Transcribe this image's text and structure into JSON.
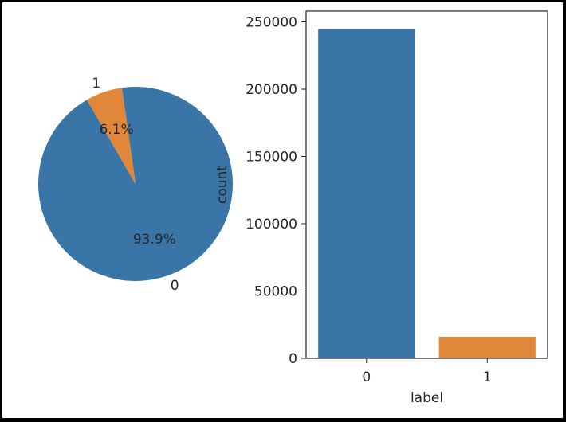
{
  "colors": {
    "series_0": "#3a75a8",
    "series_1": "#e1873a",
    "background": "#ffffff",
    "axis": "#262626"
  },
  "chart_data": [
    {
      "type": "pie",
      "categories": [
        "0",
        "1"
      ],
      "values": [
        93.9,
        6.1
      ],
      "pct_labels": [
        "93.9%",
        "6.1%"
      ],
      "title": "",
      "start_angle_deg": 120,
      "legend": "none"
    },
    {
      "type": "bar",
      "categories": [
        "0",
        "1"
      ],
      "values": [
        244500,
        16000
      ],
      "title": "",
      "xlabel": "label",
      "ylabel": "count",
      "ylim": [
        0,
        258000
      ],
      "yticks": [
        0,
        50000,
        100000,
        150000,
        200000,
        250000
      ],
      "grid": false,
      "legend": "none"
    }
  ]
}
